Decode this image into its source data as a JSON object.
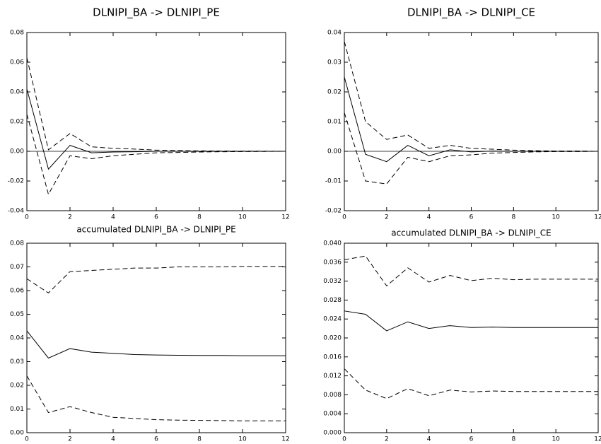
{
  "chart_data": [
    {
      "type": "line",
      "title": "DLNIPI_BA  -> DLNIPI_PE",
      "zero_line": true,
      "x": [
        0,
        1,
        2,
        3,
        4,
        5,
        6,
        7,
        8,
        9,
        10,
        11,
        12
      ],
      "xlim": [
        0,
        12
      ],
      "xticks": [
        0,
        2,
        4,
        6,
        8,
        10,
        12
      ],
      "ylim": [
        -0.04,
        0.08
      ],
      "yticks": [
        {
          "value": -0.04,
          "label": "-0.04"
        },
        {
          "value": -0.02,
          "label": "-0.02"
        },
        {
          "value": 0,
          "label": "0.00"
        },
        {
          "value": 0.02,
          "label": "0.02"
        },
        {
          "value": 0.04,
          "label": "0.04"
        },
        {
          "value": 0.06,
          "label": "0.06"
        },
        {
          "value": 0.08,
          "label": "0.08"
        }
      ],
      "series": [
        {
          "color": "#000000",
          "dash": false,
          "values": [
            0.042,
            -0.012,
            0.004,
            -0.001,
            -0.0005,
            -0.0003,
            0,
            0,
            0,
            0,
            0,
            0,
            0
          ]
        },
        {
          "color": "#000000",
          "dash": true,
          "values": [
            0.063,
            0.001,
            0.012,
            0.003,
            0.002,
            0.0015,
            0.0008,
            0.0005,
            0.0003,
            0.0002,
            0.0001,
            0.0001,
            0
          ]
        },
        {
          "color": "#000000",
          "dash": true,
          "values": [
            0.025,
            -0.029,
            -0.003,
            -0.005,
            -0.003,
            -0.002,
            -0.001,
            -0.0008,
            -0.0005,
            -0.0003,
            -0.0002,
            -0.0001,
            0
          ]
        }
      ]
    },
    {
      "type": "line",
      "title": "DLNIPI_BA  -> DLNIPI_CE",
      "zero_line": true,
      "x": [
        0,
        1,
        2,
        3,
        4,
        5,
        6,
        7,
        8,
        9,
        10,
        11,
        12
      ],
      "xlim": [
        0,
        12
      ],
      "xticks": [
        0,
        2,
        4,
        6,
        8,
        10,
        12
      ],
      "ylim": [
        -0.02,
        0.04
      ],
      "yticks": [
        {
          "value": -0.02,
          "label": "-0.02"
        },
        {
          "value": -0.01,
          "label": "-0.01"
        },
        {
          "value": 0,
          "label": "0.00"
        },
        {
          "value": 0.01,
          "label": "0.01"
        },
        {
          "value": 0.02,
          "label": "0.02"
        },
        {
          "value": 0.03,
          "label": "0.03"
        },
        {
          "value": 0.04,
          "label": "0.04"
        }
      ],
      "series": [
        {
          "color": "#000000",
          "dash": false,
          "values": [
            0.025,
            -0.001,
            -0.0035,
            0.002,
            -0.0015,
            0.0005,
            -0.0002,
            0.0001,
            0,
            0,
            0,
            0,
            0
          ]
        },
        {
          "color": "#000000",
          "dash": true,
          "values": [
            0.037,
            0.01,
            0.004,
            0.0055,
            0.001,
            0.002,
            0.001,
            0.0007,
            0.0004,
            0.0002,
            0.0001,
            0.0001,
            0
          ]
        },
        {
          "color": "#000000",
          "dash": true,
          "values": [
            0.013,
            -0.01,
            -0.011,
            -0.002,
            -0.0035,
            -0.0015,
            -0.0012,
            -0.0006,
            -0.0004,
            -0.0002,
            -0.0001,
            -0.0001,
            0
          ]
        }
      ]
    },
    {
      "type": "line",
      "title": "accumulated DLNIPI_BA -> DLNIPI_PE",
      "zero_line": false,
      "x": [
        0,
        1,
        2,
        3,
        4,
        5,
        6,
        7,
        8,
        9,
        10,
        11,
        12
      ],
      "xlim": [
        0,
        12
      ],
      "xticks": [
        0,
        2,
        4,
        6,
        8,
        10,
        12
      ],
      "ylim": [
        0,
        0.08
      ],
      "yticks": [
        {
          "value": 0,
          "label": "0.00"
        },
        {
          "value": 0.01,
          "label": "0.01"
        },
        {
          "value": 0.02,
          "label": "0.02"
        },
        {
          "value": 0.03,
          "label": "0.03"
        },
        {
          "value": 0.04,
          "label": "0.04"
        },
        {
          "value": 0.05,
          "label": "0.05"
        },
        {
          "value": 0.06,
          "label": "0.06"
        },
        {
          "value": 0.07,
          "label": "0.07"
        },
        {
          "value": 0.08,
          "label": "0.08"
        }
      ],
      "series": [
        {
          "color": "#000000",
          "dash": false,
          "values": [
            0.043,
            0.0315,
            0.0355,
            0.034,
            0.0335,
            0.033,
            0.0328,
            0.0327,
            0.0326,
            0.0326,
            0.0325,
            0.0325,
            0.0325
          ]
        },
        {
          "color": "#000000",
          "dash": true,
          "values": [
            0.065,
            0.059,
            0.068,
            0.0685,
            0.069,
            0.0695,
            0.0695,
            0.07,
            0.07,
            0.07,
            0.0702,
            0.0702,
            0.0702
          ]
        },
        {
          "color": "#000000",
          "dash": true,
          "values": [
            0.024,
            0.0085,
            0.011,
            0.0085,
            0.0065,
            0.006,
            0.0055,
            0.0053,
            0.0052,
            0.0051,
            0.005,
            0.005,
            0.005
          ]
        }
      ]
    },
    {
      "type": "line",
      "title": "accumulated DLNIPI_BA -> DLNIPI_CE",
      "zero_line": false,
      "x": [
        0,
        1,
        2,
        3,
        4,
        5,
        6,
        7,
        8,
        9,
        10,
        11,
        12
      ],
      "xlim": [
        0,
        12
      ],
      "xticks": [
        0,
        2,
        4,
        6,
        8,
        10,
        12
      ],
      "ylim": [
        0,
        0.04
      ],
      "yticks": [
        {
          "value": 0,
          "label": "0.000"
        },
        {
          "value": 0.004,
          "label": "0.004"
        },
        {
          "value": 0.008,
          "label": "0.008"
        },
        {
          "value": 0.012,
          "label": "0.012"
        },
        {
          "value": 0.016,
          "label": "0.016"
        },
        {
          "value": 0.02,
          "label": "0.020"
        },
        {
          "value": 0.024,
          "label": "0.024"
        },
        {
          "value": 0.028,
          "label": "0.028"
        },
        {
          "value": 0.032,
          "label": "0.032"
        },
        {
          "value": 0.036,
          "label": "0.036"
        },
        {
          "value": 0.04,
          "label": "0.040"
        }
      ],
      "series": [
        {
          "color": "#000000",
          "dash": false,
          "values": [
            0.0257,
            0.025,
            0.0215,
            0.0234,
            0.022,
            0.0226,
            0.0222,
            0.0223,
            0.0222,
            0.0222,
            0.0222,
            0.0222,
            0.0222
          ]
        },
        {
          "color": "#000000",
          "dash": true,
          "values": [
            0.0365,
            0.0373,
            0.031,
            0.0348,
            0.0318,
            0.0332,
            0.0321,
            0.0326,
            0.0323,
            0.0324,
            0.0324,
            0.0324,
            0.0324
          ]
        },
        {
          "color": "#000000",
          "dash": true,
          "values": [
            0.0135,
            0.009,
            0.0072,
            0.0093,
            0.0078,
            0.009,
            0.0086,
            0.0088,
            0.0087,
            0.0087,
            0.0087,
            0.0087,
            0.0087
          ]
        }
      ]
    }
  ]
}
